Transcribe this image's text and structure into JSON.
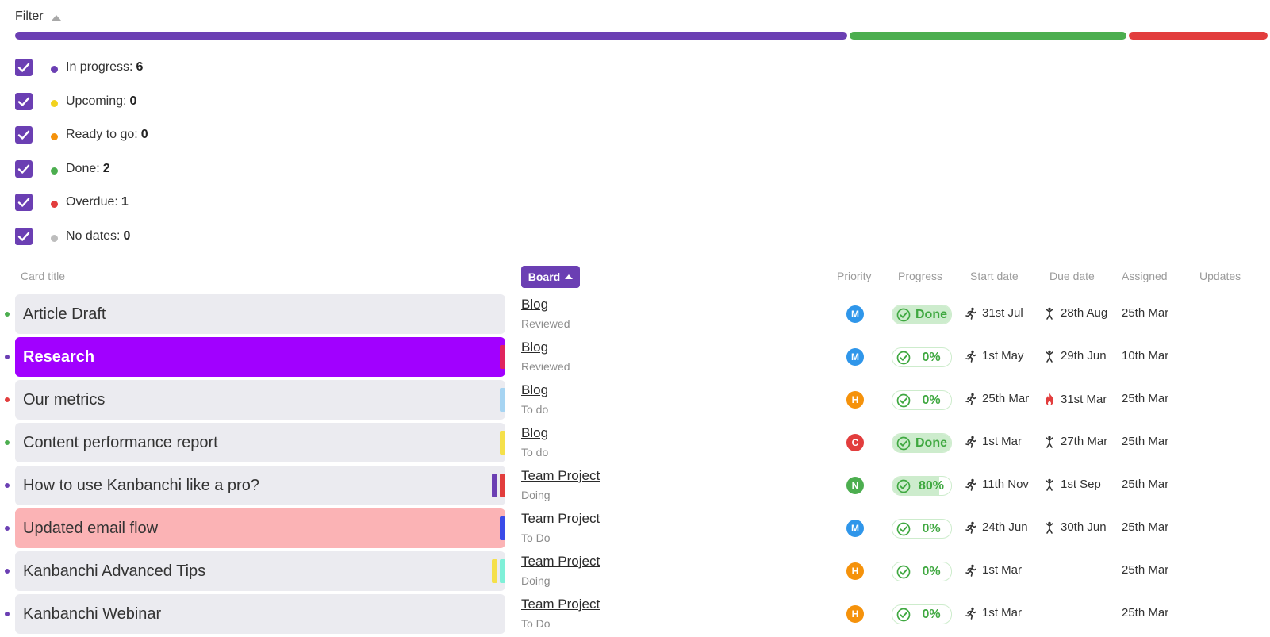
{
  "filter": {
    "title": "Filter"
  },
  "status_bar": [
    {
      "status": "in_progress",
      "count": 6,
      "color": "#6b3fb3"
    },
    {
      "status": "done",
      "count": 2,
      "color": "#4cae4f"
    },
    {
      "status": "overdue",
      "count": 1,
      "color": "#e23d3d"
    }
  ],
  "legend": [
    {
      "label": "In progress:",
      "count": "6",
      "color": "#6b3fb3",
      "checked": true
    },
    {
      "label": "Upcoming:",
      "count": "0",
      "color": "#f2d21e",
      "checked": true
    },
    {
      "label": "Ready to go:",
      "count": "0",
      "color": "#f5920b",
      "checked": true
    },
    {
      "label": "Done:",
      "count": "2",
      "color": "#4cae4f",
      "checked": true
    },
    {
      "label": "Overdue:",
      "count": "1",
      "color": "#e23d3d",
      "checked": true
    },
    {
      "label": "No dates:",
      "count": "0",
      "color": "#bdbdbd",
      "checked": true
    }
  ],
  "table": {
    "headers": {
      "card_title": "Card title",
      "board": "Board",
      "priority": "Priority",
      "progress": "Progress",
      "start_date": "Start date",
      "due_date": "Due date",
      "assigned": "Assigned",
      "updates": "Updates"
    },
    "rows": [
      {
        "title": "Article Draft",
        "status_color": "#4cae4f",
        "card_bg": "#ebebf0",
        "title_color": "#333",
        "title_weight": "normal",
        "tags": [],
        "board": "Blog",
        "list": "Reviewed",
        "priority": "M",
        "priority_color": "#2f96ea",
        "progress_text": "Done",
        "progress_value": 1.0,
        "start": "31st Jul",
        "due": "28th Aug",
        "due_icon": "flag-icon",
        "assigned": "25th Mar"
      },
      {
        "title": "Research",
        "status_color": "#6b3fb3",
        "card_bg": "#a100ff",
        "title_color": "#ffffff",
        "title_weight": "bold",
        "tags": [
          {
            "color": "#e0245e"
          }
        ],
        "board": "Blog",
        "list": "Reviewed",
        "priority": "M",
        "priority_color": "#2f96ea",
        "progress_text": "0%",
        "progress_value": 0,
        "start": "1st May",
        "due": "29th Jun",
        "due_icon": "flag-icon",
        "assigned": "10th Mar"
      },
      {
        "title": "Our metrics",
        "status_color": "#e23d3d",
        "card_bg": "#ebebf0",
        "title_color": "#333",
        "title_weight": "normal",
        "tags": [
          {
            "color": "#a6d4f2"
          }
        ],
        "board": "Blog",
        "list": "To do",
        "priority": "H",
        "priority_color": "#f5920b",
        "progress_text": "0%",
        "progress_value": 0,
        "start": "25th Mar",
        "due": "31st Mar",
        "due_icon": "fire-icon",
        "assigned": "25th Mar"
      },
      {
        "title": "Content performance report",
        "status_color": "#4cae4f",
        "card_bg": "#ebebf0",
        "title_color": "#333",
        "title_weight": "normal",
        "tags": [
          {
            "color": "#f5e04a"
          }
        ],
        "board": "Blog",
        "list": "To do",
        "priority": "C",
        "priority_color": "#e23d3d",
        "progress_text": "Done",
        "progress_value": 1.0,
        "start": "1st Mar",
        "due": "27th Mar",
        "due_icon": "flag-icon",
        "assigned": "25th Mar"
      },
      {
        "title": "How to use Kanbanchi like a pro?",
        "status_color": "#6b3fb3",
        "card_bg": "#ebebf0",
        "title_color": "#333",
        "title_weight": "normal",
        "tags": [
          {
            "color": "#6b3fb3"
          },
          {
            "color": "#e23d3d"
          }
        ],
        "board": "Team Project",
        "list": "Doing",
        "priority": "N",
        "priority_color": "#4cae4f",
        "progress_text": "80%",
        "progress_value": 0.8,
        "start": "11th Nov",
        "due": "1st Sep",
        "due_icon": "flag-icon",
        "assigned": "25th Mar"
      },
      {
        "title": "Updated email flow",
        "status_color": "#6b3fb3",
        "card_bg": "#fbb3b5",
        "title_color": "#333",
        "title_weight": "normal",
        "tags": [
          {
            "color": "#3a4be8"
          }
        ],
        "board": "Team Project",
        "list": "To Do",
        "priority": "M",
        "priority_color": "#2f96ea",
        "progress_text": "0%",
        "progress_value": 0,
        "start": "24th Jun",
        "due": "30th Jun",
        "due_icon": "flag-icon",
        "assigned": "25th Mar"
      },
      {
        "title": "Kanbanchi Advanced Tips",
        "status_color": "#6b3fb3",
        "card_bg": "#ebebf0",
        "title_color": "#333",
        "title_weight": "normal",
        "tags": [
          {
            "color": "#f5e04a"
          },
          {
            "color": "#7ff0d8"
          }
        ],
        "board": "Team Project",
        "list": "Doing",
        "priority": "H",
        "priority_color": "#f5920b",
        "progress_text": "0%",
        "progress_value": 0,
        "start": "1st Mar",
        "due": "",
        "due_icon": "",
        "assigned": "25th Mar"
      },
      {
        "title": "Kanbanchi Webinar",
        "status_color": "#6b3fb3",
        "card_bg": "#ebebf0",
        "title_color": "#333",
        "title_weight": "normal",
        "tags": [],
        "board": "Team Project",
        "list": "To Do",
        "priority": "H",
        "priority_color": "#f5920b",
        "progress_text": "0%",
        "progress_value": 0,
        "start": "1st Mar",
        "due": "",
        "due_icon": "",
        "assigned": "25th Mar"
      }
    ]
  }
}
